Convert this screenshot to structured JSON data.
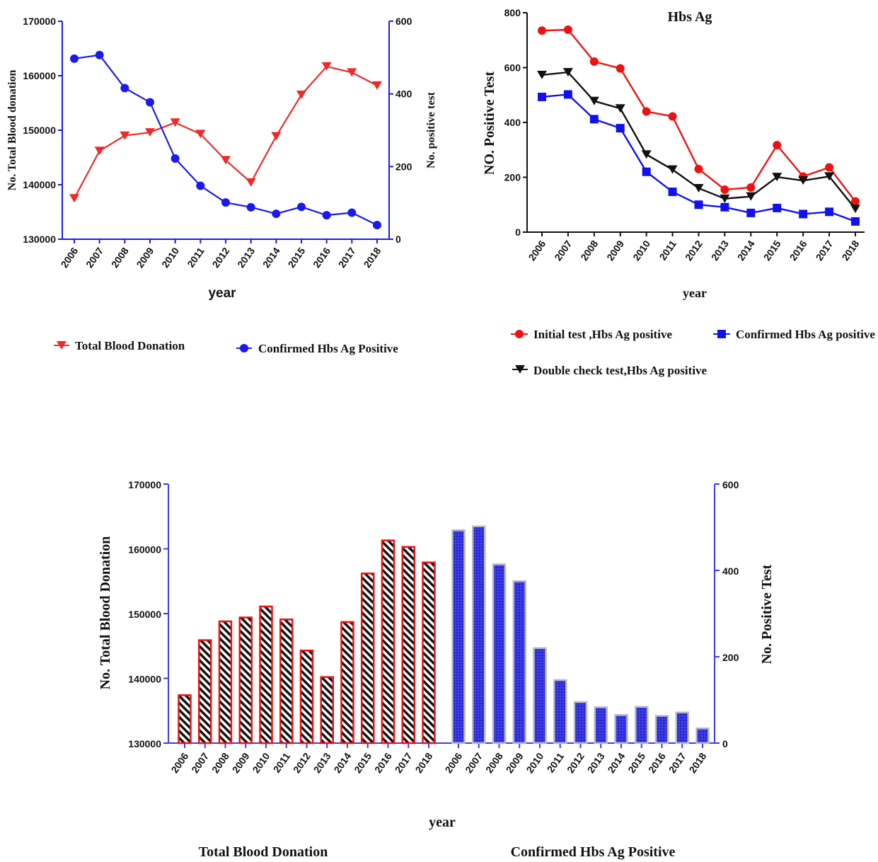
{
  "chart_data": [
    {
      "type": "line",
      "title": "",
      "xlabel": "year",
      "ylabel_left": "No. Total Blood donation",
      "ylabel_right": "No. positive test",
      "x": [
        "2006",
        "2007",
        "2008",
        "2009",
        "2010",
        "2011",
        "2012",
        "2013",
        "2014",
        "2015",
        "2016",
        "2017",
        "2018"
      ],
      "ylim_left": [
        130000,
        170000
      ],
      "ylim_right": [
        0,
        600
      ],
      "yticks_left": [
        "130000",
        "140000",
        "150000",
        "160000",
        "170000"
      ],
      "yticks_right": [
        "0",
        "200",
        "400",
        "600"
      ],
      "series": [
        {
          "name": "Total Blood Donation",
          "axis": "left",
          "marker": "triangle-down",
          "color": "#ee2a2a",
          "values": [
            137500,
            146200,
            149000,
            149600,
            151400,
            149300,
            144500,
            140400,
            148900,
            156500,
            161700,
            160600,
            158200
          ]
        },
        {
          "name": "Confirmed Hbs Ag  Positive",
          "axis": "right",
          "marker": "circle",
          "color": "#1a1aee",
          "values": [
            497,
            507,
            416,
            377,
            222,
            147,
            101,
            88,
            70,
            89,
            66,
            73,
            39
          ]
        }
      ],
      "legend_position": "bottom"
    },
    {
      "type": "line",
      "title": "Hbs Ag",
      "xlabel": "year",
      "ylabel": "NO. Positive Test",
      "x": [
        "2006",
        "2007",
        "2008",
        "2009",
        "2010",
        "2011",
        "2012",
        "2013",
        "2014",
        "2015",
        "2016",
        "2017",
        "2018"
      ],
      "ylim": [
        0,
        800
      ],
      "yticks": [
        "0",
        "200",
        "400",
        "600",
        "800"
      ],
      "series": [
        {
          "name": "Initial test ,Hbs Ag  positive",
          "marker": "circle",
          "color": "#ee1111",
          "values": [
            735,
            738,
            622,
            597,
            440,
            422,
            230,
            155,
            163,
            317,
            203,
            236,
            112
          ]
        },
        {
          "name": "Confirmed Hbs Ag  positive",
          "marker": "square",
          "color": "#1111ee",
          "values": [
            493,
            502,
            412,
            379,
            220,
            147,
            100,
            91,
            70,
            88,
            66,
            74,
            39
          ]
        },
        {
          "name": "Double check test,Hbs Ag  positive",
          "marker": "triangle-down",
          "color": "#111111",
          "values": [
            573,
            583,
            478,
            451,
            283,
            228,
            160,
            122,
            130,
            201,
            188,
            203,
            85
          ]
        }
      ],
      "legend_position": "bottom"
    },
    {
      "type": "bar",
      "title": "",
      "xlabel": "year",
      "ylabel_left": "No. Total Blood Donation",
      "ylabel_right": "No. Positive Test",
      "ylim_left": [
        130000,
        170000
      ],
      "ylim_right": [
        0,
        600
      ],
      "yticks_left": [
        "130000",
        "140000",
        "150000",
        "160000",
        "170000"
      ],
      "yticks_right": [
        "0",
        "200",
        "400",
        "600"
      ],
      "groups": [
        {
          "name": "Total Blood Donation",
          "axis": "left",
          "color": "#ee1111",
          "pattern": "diagonal-stripes",
          "categories": [
            "2006",
            "2007",
            "2008",
            "2009",
            "2010",
            "2011",
            "2012",
            "2013",
            "2014",
            "2015",
            "2016",
            "2017",
            "2018"
          ],
          "values": [
            137400,
            145900,
            148800,
            149400,
            151100,
            149100,
            144300,
            140200,
            148700,
            156200,
            161300,
            160300,
            157900
          ]
        },
        {
          "name": "Confirmed Hbs Ag  Positive",
          "axis": "right",
          "color": "#3333ee",
          "pattern": "dotted",
          "categories": [
            "2006",
            "2007",
            "2008",
            "2009",
            "2010",
            "2011",
            "2012",
            "2013",
            "2014",
            "2015",
            "2016",
            "2017",
            "2018"
          ],
          "values": [
            493,
            502,
            414,
            375,
            220,
            146,
            95,
            83,
            65,
            84,
            63,
            71,
            34
          ]
        }
      ],
      "legend_position": "bottom"
    }
  ]
}
